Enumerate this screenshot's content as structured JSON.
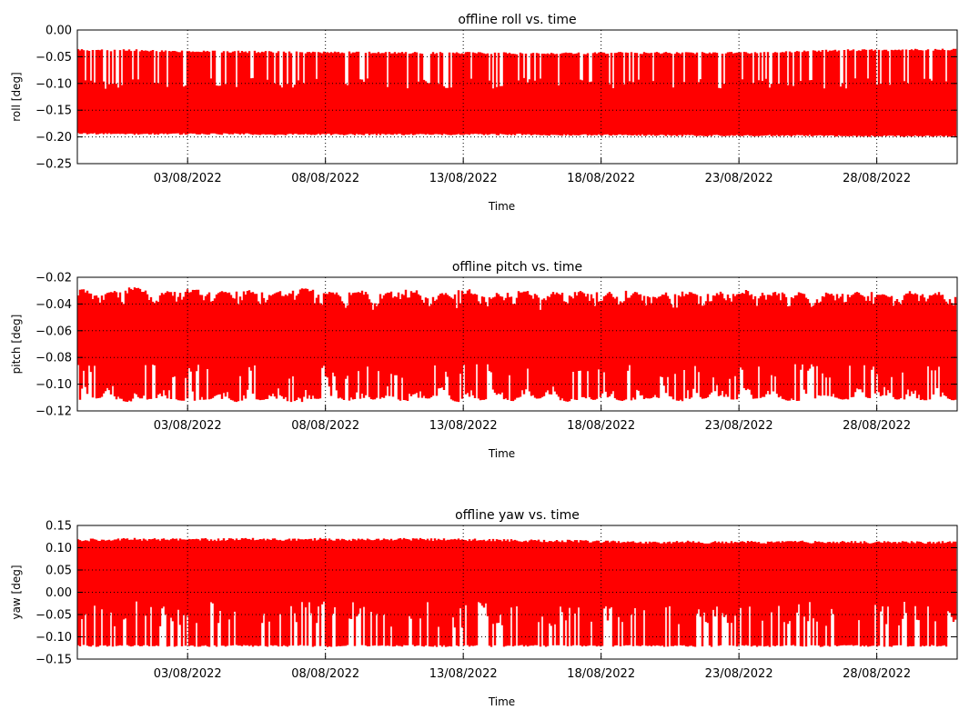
{
  "chart_data": [
    {
      "type": "line",
      "title": "offline roll vs. time",
      "xlabel": "Time",
      "ylabel": "roll [deg]",
      "ylim": [
        -0.25,
        0.0
      ],
      "xlim": [
        "2022-07-30T00:00",
        "2022-08-30T22:00"
      ],
      "yticks": [
        0.0,
        -0.05,
        -0.1,
        -0.15,
        -0.2,
        -0.25
      ],
      "ytick_labels": [
        "0.00",
        "−0.05",
        "−0.10",
        "−0.15",
        "−0.20",
        "−0.25"
      ],
      "xticks": [
        "2022-08-03",
        "2022-08-08",
        "2022-08-13",
        "2022-08-18",
        "2022-08-23",
        "2022-08-28"
      ],
      "xtick_labels": [
        "03/08/2022",
        "08/08/2022",
        "13/08/2022",
        "18/08/2022",
        "23/08/2022",
        "28/08/2022"
      ],
      "grid": true,
      "color": "#ff0000",
      "series": [
        {
          "band_upper": [
            -0.035,
            -0.036,
            -0.036,
            -0.037,
            -0.038,
            -0.038,
            -0.039,
            -0.039,
            -0.04,
            -0.04,
            -0.04,
            -0.04,
            -0.041,
            -0.041,
            -0.041,
            -0.041,
            -0.042,
            -0.042,
            -0.042,
            -0.041,
            -0.041,
            -0.041,
            -0.041,
            -0.041,
            -0.041,
            -0.04,
            -0.039,
            -0.037,
            -0.036,
            -0.036,
            -0.035
          ],
          "band_lower": [
            -0.195,
            -0.196,
            -0.196,
            -0.196,
            -0.196,
            -0.196,
            -0.196,
            -0.197,
            -0.197,
            -0.197,
            -0.197,
            -0.197,
            -0.197,
            -0.197,
            -0.197,
            -0.197,
            -0.197,
            -0.198,
            -0.198,
            -0.198,
            -0.198,
            -0.198,
            -0.199,
            -0.199,
            -0.199,
            -0.199,
            -0.199,
            -0.199,
            -0.2,
            -0.2,
            -0.2
          ],
          "dips_typical": [
            -0.09,
            -0.1,
            -0.09,
            -0.1,
            -0.09,
            -0.1,
            -0.09,
            -0.1,
            -0.09,
            -0.1,
            -0.09,
            -0.1,
            -0.09,
            -0.1,
            -0.09,
            -0.1,
            -0.09,
            -0.1,
            -0.09,
            -0.1,
            -0.09,
            -0.1,
            -0.09,
            -0.1,
            -0.09,
            -0.1,
            -0.09,
            -0.1,
            -0.09,
            -0.1,
            -0.09
          ]
        }
      ]
    },
    {
      "type": "line",
      "title": "offline pitch vs. time",
      "xlabel": "Time",
      "ylabel": "pitch [deg]",
      "ylim": [
        -0.12,
        -0.02
      ],
      "xlim": [
        "2022-07-30T00:00",
        "2022-08-30T22:00"
      ],
      "yticks": [
        -0.02,
        -0.04,
        -0.06,
        -0.08,
        -0.1,
        -0.12
      ],
      "ytick_labels": [
        "−0.02",
        "−0.04",
        "−0.06",
        "−0.08",
        "−0.10",
        "−0.12"
      ],
      "xticks": [
        "2022-08-03",
        "2022-08-08",
        "2022-08-13",
        "2022-08-18",
        "2022-08-23",
        "2022-08-28"
      ],
      "xtick_labels": [
        "03/08/2022",
        "08/08/2022",
        "13/08/2022",
        "18/08/2022",
        "23/08/2022",
        "28/08/2022"
      ],
      "grid": true,
      "color": "#ff0000",
      "series": [
        {
          "band_upper": [
            -0.028,
            -0.03,
            -0.026,
            -0.031,
            -0.027,
            -0.03,
            -0.028,
            -0.031,
            -0.027,
            -0.03,
            -0.028,
            -0.031,
            -0.028,
            -0.031,
            -0.028,
            -0.032,
            -0.028,
            -0.031,
            -0.029,
            -0.031,
            -0.029,
            -0.032,
            -0.03,
            -0.031,
            -0.029,
            -0.031,
            -0.03,
            -0.031,
            -0.03,
            -0.031,
            -0.03
          ],
          "band_lower": [
            -0.112,
            -0.11,
            -0.114,
            -0.11,
            -0.113,
            -0.111,
            -0.114,
            -0.111,
            -0.114,
            -0.11,
            -0.113,
            -0.111,
            -0.113,
            -0.11,
            -0.114,
            -0.111,
            -0.113,
            -0.11,
            -0.114,
            -0.111,
            -0.113,
            -0.11,
            -0.113,
            -0.11,
            -0.112,
            -0.11,
            -0.113,
            -0.11,
            -0.112,
            -0.11,
            -0.112
          ],
          "dips_typical": [
            -0.085,
            -0.09,
            -0.085,
            -0.09,
            -0.085,
            -0.09,
            -0.085,
            -0.09,
            -0.085,
            -0.09,
            -0.085,
            -0.09,
            -0.085,
            -0.09,
            -0.085,
            -0.09,
            -0.085,
            -0.09,
            -0.085,
            -0.09,
            -0.085,
            -0.09,
            -0.085,
            -0.09,
            -0.085,
            -0.09,
            -0.085,
            -0.09,
            -0.085,
            -0.09,
            -0.085
          ]
        }
      ]
    },
    {
      "type": "line",
      "title": "offline yaw vs. time",
      "xlabel": "Time",
      "ylabel": "yaw [deg]",
      "ylim": [
        -0.15,
        0.15
      ],
      "xlim": [
        "2022-07-30T00:00",
        "2022-08-30T22:00"
      ],
      "yticks": [
        0.15,
        0.1,
        0.05,
        0.0,
        -0.05,
        -0.1,
        -0.15
      ],
      "ytick_labels": [
        "0.15",
        "0.10",
        "0.05",
        "0.00",
        "−0.05",
        "−0.10",
        "−0.15"
      ],
      "xticks": [
        "2022-08-03",
        "2022-08-08",
        "2022-08-13",
        "2022-08-18",
        "2022-08-23",
        "2022-08-28"
      ],
      "xtick_labels": [
        "03/08/2022",
        "08/08/2022",
        "13/08/2022",
        "18/08/2022",
        "23/08/2022",
        "28/08/2022"
      ],
      "grid": true,
      "color": "#ff0000",
      "series": [
        {
          "band_upper": [
            0.12,
            0.121,
            0.122,
            0.121,
            0.122,
            0.121,
            0.122,
            0.122,
            0.121,
            0.122,
            0.121,
            0.121,
            0.122,
            0.121,
            0.121,
            0.12,
            0.119,
            0.118,
            0.118,
            0.117,
            0.116,
            0.115,
            0.116,
            0.115,
            0.116,
            0.115,
            0.116,
            0.115,
            0.116,
            0.115,
            0.115
          ],
          "band_lower": [
            -0.122,
            -0.123,
            -0.122,
            -0.123,
            -0.122,
            -0.123,
            -0.122,
            -0.123,
            -0.122,
            -0.123,
            -0.122,
            -0.123,
            -0.122,
            -0.123,
            -0.122,
            -0.123,
            -0.122,
            -0.123,
            -0.122,
            -0.123,
            -0.122,
            -0.123,
            -0.122,
            -0.123,
            -0.122,
            -0.123,
            -0.122,
            -0.123,
            -0.122,
            -0.123,
            -0.122
          ],
          "dips_typical": [
            -0.02,
            -0.03,
            -0.02,
            -0.03,
            -0.02,
            -0.03,
            -0.02,
            -0.03,
            -0.02,
            -0.03,
            -0.02,
            -0.03,
            -0.02,
            -0.03,
            -0.02,
            -0.03,
            -0.02,
            -0.03,
            -0.02,
            -0.03,
            -0.02,
            -0.03,
            -0.02,
            -0.03,
            -0.02,
            -0.03,
            -0.02,
            -0.03,
            -0.02,
            -0.03,
            -0.02
          ]
        }
      ]
    }
  ]
}
